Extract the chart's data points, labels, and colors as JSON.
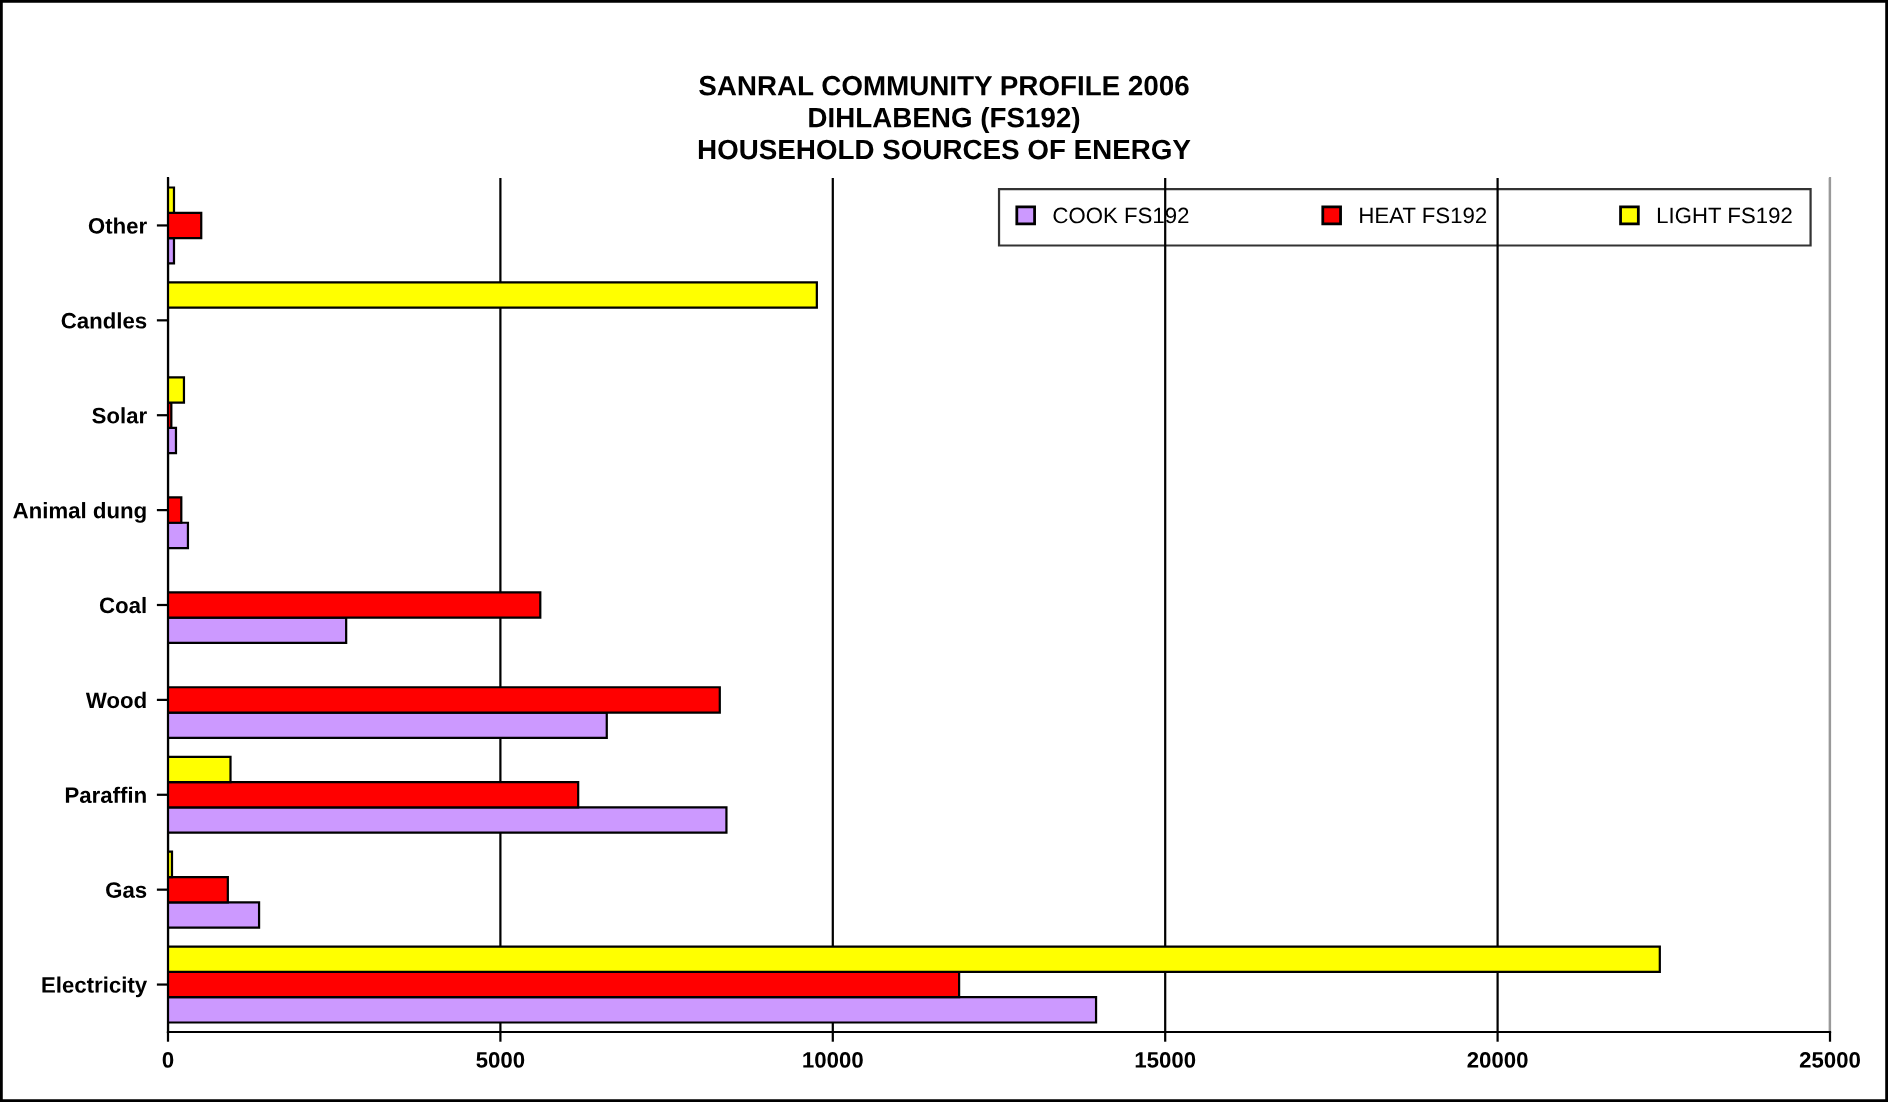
{
  "chart_data": {
    "type": "bar",
    "orientation": "horizontal",
    "title": "SANRAL COMMUNITY PROFILE 2006\nDIHLABENG (FS192)\nHOUSEHOLD SOURCES OF ENERGY",
    "categories": [
      "Other",
      "Candles",
      "Solar",
      "Animal dung",
      "Coal",
      "Wood",
      "Paraffin",
      "Gas",
      "Electricity"
    ],
    "series": [
      {
        "name": "COOK FS192",
        "color": "#cc99ff",
        "values": [
          90,
          null,
          120,
          300,
          2680,
          6600,
          8400,
          1370,
          13960
        ]
      },
      {
        "name": "HEAT FS192",
        "color": "#ff0000",
        "values": [
          500,
          null,
          50,
          200,
          5600,
          8300,
          6170,
          900,
          11900
        ]
      },
      {
        "name": "LIGHT FS192",
        "color": "#ffff00",
        "values": [
          90,
          9760,
          240,
          null,
          null,
          null,
          940,
          60,
          22440
        ]
      }
    ],
    "xlim": [
      0,
      25000
    ],
    "xticks": [
      0,
      5000,
      10000,
      15000,
      20000,
      25000
    ],
    "grid": "x",
    "legend": "top right"
  }
}
